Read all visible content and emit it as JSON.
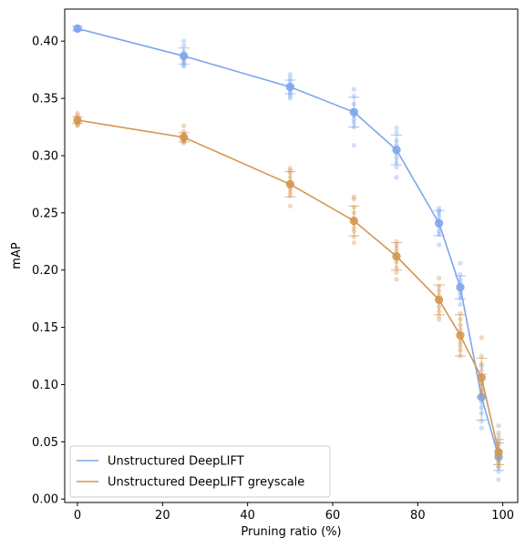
{
  "chart_data": {
    "type": "line",
    "xlabel": "Pruning ratio (%)",
    "ylabel": "mAP",
    "xlim": [
      -3,
      103.5
    ],
    "ylim": [
      -0.003,
      0.428
    ],
    "xticks": [
      0,
      20,
      40,
      60,
      80,
      100
    ],
    "yticks": [
      0.0,
      0.05,
      0.1,
      0.15,
      0.2,
      0.25,
      0.3,
      0.35,
      0.4
    ],
    "legend_placement": "lower-left",
    "grid": false,
    "series": [
      {
        "name": "Unstructured DeepLIFT",
        "color": "#7ea6ed",
        "x": [
          0,
          25,
          50,
          65,
          75,
          85,
          90,
          95,
          99
        ],
        "y": [
          0.411,
          0.387,
          0.36,
          0.338,
          0.305,
          0.241,
          0.185,
          0.089,
          0.037
        ],
        "err": [
          0.002,
          0.007,
          0.006,
          0.013,
          0.013,
          0.011,
          0.01,
          0.02,
          0.012
        ],
        "scatter": [
          [
            0.411,
            0.41,
            0.412,
            0.409,
            0.411,
            0.41,
            0.412,
            0.411,
            0.41,
            0.411
          ],
          [
            0.4,
            0.396,
            0.391,
            0.388,
            0.386,
            0.384,
            0.382,
            0.381,
            0.379,
            0.378
          ],
          [
            0.371,
            0.368,
            0.365,
            0.361,
            0.36,
            0.358,
            0.356,
            0.354,
            0.352,
            0.35
          ],
          [
            0.358,
            0.352,
            0.345,
            0.34,
            0.338,
            0.335,
            0.332,
            0.329,
            0.325,
            0.309
          ],
          [
            0.324,
            0.32,
            0.313,
            0.309,
            0.305,
            0.302,
            0.298,
            0.294,
            0.29,
            0.281
          ],
          [
            0.254,
            0.252,
            0.25,
            0.247,
            0.243,
            0.24,
            0.238,
            0.234,
            0.231,
            0.222
          ],
          [
            0.206,
            0.196,
            0.192,
            0.189,
            0.186,
            0.184,
            0.181,
            0.178,
            0.175,
            0.17
          ],
          [
            0.116,
            0.108,
            0.101,
            0.095,
            0.09,
            0.085,
            0.08,
            0.075,
            0.068,
            0.062
          ],
          [
            0.064,
            0.055,
            0.048,
            0.042,
            0.038,
            0.035,
            0.032,
            0.028,
            0.024,
            0.017
          ]
        ]
      },
      {
        "name": "Unstructured DeepLIFT greyscale",
        "color": "#d4964f",
        "x": [
          0,
          25,
          50,
          65,
          75,
          85,
          90,
          95,
          99
        ],
        "y": [
          0.331,
          0.316,
          0.275,
          0.243,
          0.212,
          0.174,
          0.143,
          0.106,
          0.041
        ],
        "err": [
          0.003,
          0.004,
          0.011,
          0.013,
          0.012,
          0.013,
          0.018,
          0.017,
          0.011
        ],
        "scatter": [
          [
            0.337,
            0.335,
            0.333,
            0.332,
            0.331,
            0.33,
            0.329,
            0.328,
            0.327,
            0.326
          ],
          [
            0.326,
            0.321,
            0.319,
            0.317,
            0.316,
            0.315,
            0.314,
            0.313,
            0.312,
            0.311
          ],
          [
            0.289,
            0.287,
            0.285,
            0.281,
            0.277,
            0.274,
            0.271,
            0.268,
            0.265,
            0.256
          ],
          [
            0.264,
            0.262,
            0.255,
            0.25,
            0.245,
            0.241,
            0.237,
            0.234,
            0.229,
            0.224
          ],
          [
            0.225,
            0.222,
            0.219,
            0.216,
            0.213,
            0.21,
            0.207,
            0.202,
            0.198,
            0.192
          ],
          [
            0.193,
            0.186,
            0.182,
            0.178,
            0.175,
            0.172,
            0.168,
            0.164,
            0.16,
            0.157
          ],
          [
            0.162,
            0.157,
            0.152,
            0.148,
            0.144,
            0.14,
            0.137,
            0.134,
            0.13,
            0.125
          ],
          [
            0.141,
            0.125,
            0.118,
            0.112,
            0.108,
            0.104,
            0.101,
            0.098,
            0.094,
            0.092
          ],
          [
            0.058,
            0.052,
            0.049,
            0.045,
            0.042,
            0.039,
            0.036,
            0.034,
            0.031,
            0.028
          ]
        ]
      }
    ]
  }
}
